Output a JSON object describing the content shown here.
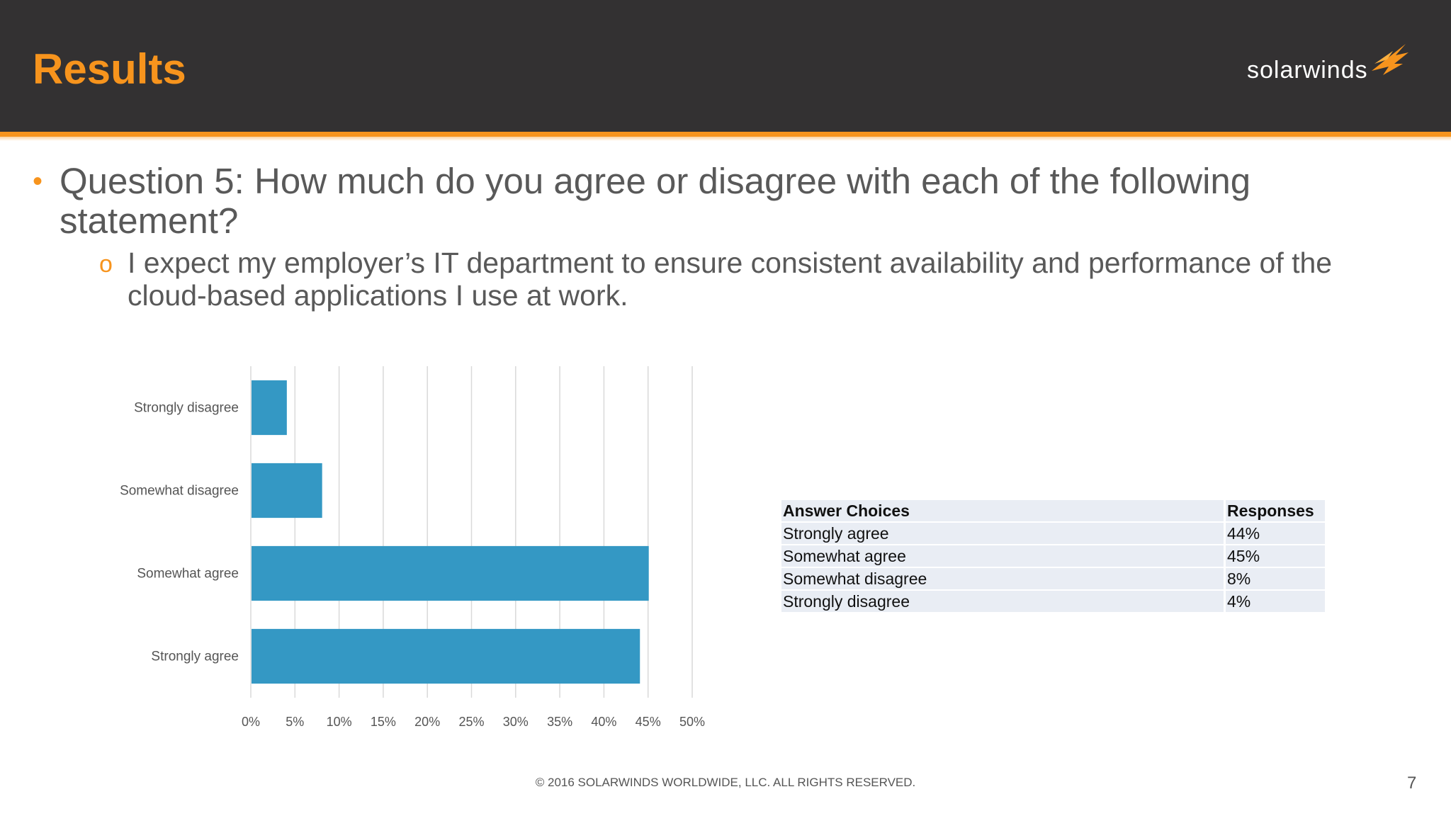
{
  "header": {
    "title": "Results",
    "logo_text": "solarwinds",
    "brand_color": "#f7941d",
    "logo_icon": "solarwinds-bird-icon"
  },
  "bullets": {
    "question": "Question 5: How much do you agree or disagree with each of the following statement?",
    "statement": "I expect my employer’s IT department to ensure consistent availability and performance of the cloud-based applications I use at work."
  },
  "chart_data": {
    "type": "bar",
    "orientation": "horizontal",
    "categories": [
      "Strongly disagree",
      "Somewhat disagree",
      "Somewhat agree",
      "Strongly agree"
    ],
    "values": [
      4,
      8,
      45,
      44
    ],
    "xlim": [
      0,
      50
    ],
    "xticks": [
      "0%",
      "5%",
      "10%",
      "15%",
      "20%",
      "25%",
      "30%",
      "35%",
      "40%",
      "45%",
      "50%"
    ],
    "grid": "vertical",
    "bar_color": "#3498c4"
  },
  "table": {
    "headers": [
      "Answer Choices",
      "Responses"
    ],
    "rows": [
      [
        "Strongly agree",
        "44%"
      ],
      [
        "Somewhat agree",
        "45%"
      ],
      [
        "Somewhat disagree",
        "8%"
      ],
      [
        "Strongly disagree",
        "4%"
      ]
    ]
  },
  "footer": {
    "copyright": "© 2016 SOLARWINDS WORLDWIDE, LLC. ALL RIGHTS RESERVED.",
    "page_number": "7"
  }
}
